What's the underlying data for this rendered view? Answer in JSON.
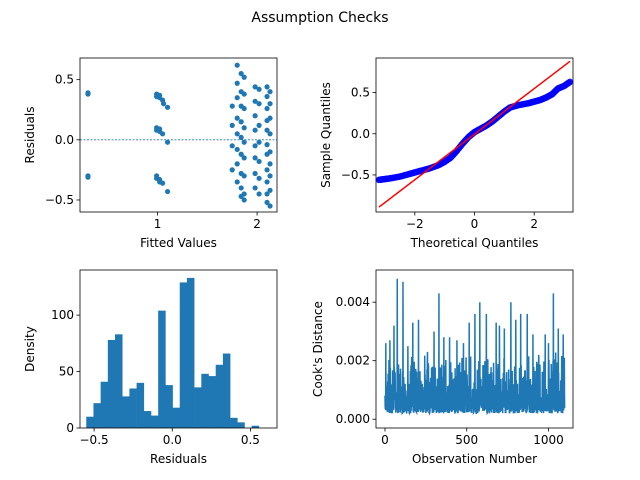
{
  "figure": {
    "suptitle": "Assumption Checks"
  },
  "chart_data": [
    {
      "type": "scatter",
      "xlabel": "Fitted Values",
      "ylabel": "Residuals",
      "xlim": [
        0.22,
        2.2
      ],
      "ylim": [
        -0.6,
        0.68
      ],
      "xticks": [
        1,
        2
      ],
      "yticks": [
        -0.5,
        0.0,
        0.5
      ],
      "yticklabels": [
        "−0.5",
        "0.0",
        "0.5"
      ],
      "reference_line": {
        "y": 0,
        "style": "dashed"
      },
      "color": "#1f77b4",
      "points": [
        [
          0.3,
          0.38
        ],
        [
          0.3,
          0.39
        ],
        [
          0.3,
          -0.3
        ],
        [
          0.3,
          -0.31
        ],
        [
          0.99,
          0.38
        ],
        [
          0.99,
          0.36
        ],
        [
          0.99,
          0.1
        ],
        [
          0.99,
          0.08
        ],
        [
          0.99,
          -0.3
        ],
        [
          0.99,
          -0.32
        ],
        [
          1.02,
          0.37
        ],
        [
          1.02,
          0.35
        ],
        [
          1.02,
          0.09
        ],
        [
          1.02,
          0.07
        ],
        [
          1.02,
          -0.33
        ],
        [
          1.02,
          -0.35
        ],
        [
          1.05,
          0.33
        ],
        [
          1.05,
          0.05
        ],
        [
          1.05,
          -0.36
        ],
        [
          1.06,
          0.3
        ],
        [
          1.1,
          0.27
        ],
        [
          1.1,
          -0.02
        ],
        [
          1.1,
          -0.43
        ],
        [
          1.75,
          0.28
        ],
        [
          1.75,
          0.12
        ],
        [
          1.75,
          -0.05
        ],
        [
          1.75,
          -0.25
        ],
        [
          1.8,
          0.62
        ],
        [
          1.8,
          0.47
        ],
        [
          1.8,
          0.35
        ],
        [
          1.8,
          0.18
        ],
        [
          1.8,
          0.05
        ],
        [
          1.8,
          -0.08
        ],
        [
          1.8,
          -0.2
        ],
        [
          1.8,
          -0.35
        ],
        [
          1.84,
          0.55
        ],
        [
          1.84,
          0.4
        ],
        [
          1.84,
          0.28
        ],
        [
          1.84,
          0.15
        ],
        [
          1.84,
          0.02
        ],
        [
          1.84,
          -0.12
        ],
        [
          1.84,
          -0.28
        ],
        [
          1.84,
          -0.4
        ],
        [
          1.84,
          -0.47
        ],
        [
          1.87,
          0.52
        ],
        [
          1.87,
          0.38
        ],
        [
          1.87,
          0.26
        ],
        [
          1.87,
          0.1
        ],
        [
          1.87,
          -0.02
        ],
        [
          1.87,
          -0.15
        ],
        [
          1.87,
          -0.3
        ],
        [
          1.87,
          -0.45
        ],
        [
          1.87,
          -0.5
        ],
        [
          1.98,
          0.44
        ],
        [
          1.98,
          0.32
        ],
        [
          1.98,
          0.2
        ],
        [
          1.98,
          0.08
        ],
        [
          1.98,
          -0.05
        ],
        [
          1.98,
          -0.15
        ],
        [
          1.98,
          -0.28
        ],
        [
          1.98,
          -0.4
        ],
        [
          2.02,
          0.42
        ],
        [
          2.02,
          0.3
        ],
        [
          2.02,
          0.12
        ],
        [
          2.02,
          -0.02
        ],
        [
          2.02,
          -0.18
        ],
        [
          2.02,
          -0.32
        ],
        [
          2.02,
          -0.45
        ],
        [
          2.1,
          0.44
        ],
        [
          2.1,
          0.36
        ],
        [
          2.1,
          0.26
        ],
        [
          2.1,
          0.16
        ],
        [
          2.1,
          0.08
        ],
        [
          2.1,
          -0.04
        ],
        [
          2.1,
          -0.12
        ],
        [
          2.1,
          -0.25
        ],
        [
          2.1,
          -0.35
        ],
        [
          2.1,
          -0.45
        ],
        [
          2.1,
          -0.52
        ],
        [
          2.13,
          0.4
        ],
        [
          2.13,
          0.3
        ],
        [
          2.13,
          0.18
        ],
        [
          2.13,
          0.05
        ],
        [
          2.13,
          -0.1
        ],
        [
          2.13,
          -0.2
        ],
        [
          2.13,
          -0.3
        ],
        [
          2.13,
          -0.42
        ],
        [
          2.13,
          -0.55
        ]
      ]
    },
    {
      "type": "scatter",
      "subtype": "qq-plot",
      "xlabel": "Theoretical Quantiles",
      "ylabel": "Sample Quantiles",
      "xlim": [
        -3.3,
        3.3
      ],
      "ylim": [
        -0.95,
        0.92
      ],
      "xticks": [
        -2,
        0,
        2
      ],
      "xticklabels": [
        "−2",
        "0",
        "2"
      ],
      "yticks": [
        -0.5,
        0.0,
        0.5
      ],
      "yticklabels": [
        "−0.5",
        "0.0",
        "0.5"
      ],
      "point_color": "#0000ff",
      "line_color": "#ff0000",
      "reference_line": [
        [
          -3.2,
          -0.89
        ],
        [
          3.2,
          0.88
        ]
      ],
      "quantile_curve": [
        [
          -3.2,
          -0.56
        ],
        [
          -3.0,
          -0.55
        ],
        [
          -2.8,
          -0.54
        ],
        [
          -2.5,
          -0.52
        ],
        [
          -2.2,
          -0.49
        ],
        [
          -2.0,
          -0.47
        ],
        [
          -1.8,
          -0.45
        ],
        [
          -1.5,
          -0.42
        ],
        [
          -1.2,
          -0.38
        ],
        [
          -1.0,
          -0.34
        ],
        [
          -0.8,
          -0.29
        ],
        [
          -0.6,
          -0.21
        ],
        [
          -0.4,
          -0.12
        ],
        [
          -0.2,
          -0.04
        ],
        [
          0.0,
          0.02
        ],
        [
          0.2,
          0.06
        ],
        [
          0.4,
          0.1
        ],
        [
          0.6,
          0.15
        ],
        [
          0.8,
          0.21
        ],
        [
          1.0,
          0.27
        ],
        [
          1.2,
          0.32
        ],
        [
          1.5,
          0.35
        ],
        [
          1.8,
          0.37
        ],
        [
          2.0,
          0.39
        ],
        [
          2.2,
          0.41
        ],
        [
          2.4,
          0.44
        ],
        [
          2.6,
          0.48
        ],
        [
          2.8,
          0.55
        ],
        [
          3.0,
          0.58
        ],
        [
          3.2,
          0.63
        ]
      ]
    },
    {
      "type": "histogram",
      "xlabel": "Residuals",
      "ylabel": "Density",
      "xlim": [
        -0.59,
        0.67
      ],
      "ylim": [
        0,
        140
      ],
      "xticks": [
        -0.5,
        0.0,
        0.5
      ],
      "xticklabels": [
        "−0.5",
        "0.0",
        "0.5"
      ],
      "yticks": [
        0,
        50,
        100
      ],
      "color": "#1f77b4",
      "bin_start": -0.55,
      "bin_width": 0.046,
      "values": [
        10,
        22,
        41,
        78,
        83,
        28,
        35,
        40,
        15,
        11,
        104,
        38,
        18,
        129,
        133,
        36,
        48,
        46,
        56,
        66,
        9,
        5,
        0,
        2
      ]
    },
    {
      "type": "line",
      "xlabel": "Observation Number",
      "ylabel": "Cook's Distance",
      "xlim": [
        -55,
        1150
      ],
      "ylim": [
        -0.0003,
        0.0051
      ],
      "xticks": [
        0,
        500,
        1000
      ],
      "yticks": [
        0.0,
        0.002,
        0.004
      ],
      "yticklabels": [
        "0.000",
        "0.002",
        "0.004"
      ],
      "color": "#1f77b4",
      "n_observations": 1100,
      "peaks": [
        [
          5,
          0.0026
        ],
        [
          30,
          0.0027
        ],
        [
          55,
          0.0032
        ],
        [
          75,
          0.0048
        ],
        [
          110,
          0.0047
        ],
        [
          140,
          0.0025
        ],
        [
          170,
          0.0033
        ],
        [
          205,
          0.0034
        ],
        [
          260,
          0.0023
        ],
        [
          300,
          0.003
        ],
        [
          330,
          0.0043
        ],
        [
          360,
          0.0028
        ],
        [
          395,
          0.0028
        ],
        [
          440,
          0.0027
        ],
        [
          480,
          0.0026
        ],
        [
          515,
          0.0033
        ],
        [
          550,
          0.0036
        ],
        [
          580,
          0.004
        ],
        [
          620,
          0.0036
        ],
        [
          680,
          0.0033
        ],
        [
          700,
          0.0032
        ],
        [
          730,
          0.0031
        ],
        [
          770,
          0.004
        ],
        [
          800,
          0.0034
        ],
        [
          830,
          0.0036
        ],
        [
          870,
          0.0036
        ],
        [
          905,
          0.0029
        ],
        [
          940,
          0.0022
        ],
        [
          980,
          0.0029
        ],
        [
          1000,
          0.0026
        ],
        [
          1030,
          0.0043
        ],
        [
          1060,
          0.0031
        ],
        [
          1090,
          0.0029
        ]
      ]
    }
  ]
}
